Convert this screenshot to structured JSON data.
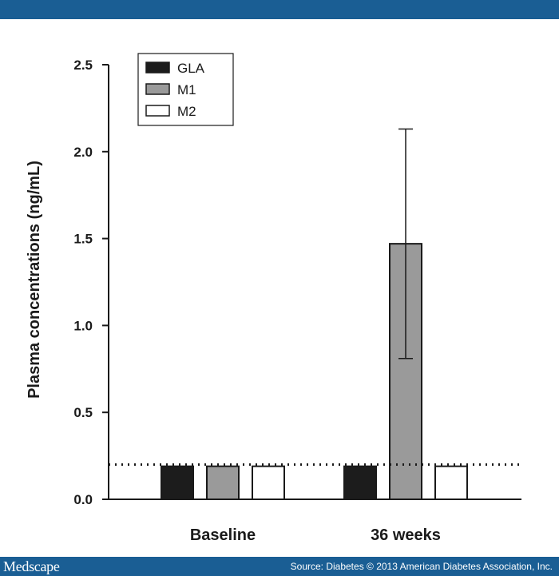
{
  "footer": {
    "brand": "Medscape",
    "source": "Source: Diabetes © 2013 American Diabetes Association, Inc."
  },
  "colors": {
    "header_bar": "#1a5e94",
    "threshold_line": "#1a1a1a"
  },
  "chart_data": {
    "type": "bar",
    "title": "",
    "xlabel": "",
    "ylabel": "Plasma concentrations (ng/mL)",
    "ylim": [
      0.0,
      2.5
    ],
    "yticks": [
      "0.0",
      "0.5",
      "1.0",
      "1.5",
      "2.0",
      "2.5"
    ],
    "categories": [
      "Baseline",
      "36 weeks"
    ],
    "series": [
      {
        "name": "GLA",
        "color": "#1c1c1c",
        "values": [
          0.19,
          0.19
        ],
        "error": [
          null,
          null
        ]
      },
      {
        "name": "M1",
        "color": "#9a9a9a",
        "values": [
          0.19,
          1.47
        ],
        "error": [
          null,
          0.66
        ]
      },
      {
        "name": "M2",
        "color": "#ffffff",
        "values": [
          0.19,
          0.19
        ],
        "error": [
          null,
          null
        ]
      }
    ],
    "reference_line": {
      "y": 0.2,
      "style": "dotted"
    },
    "legend_position": "top-left",
    "grid": false
  }
}
